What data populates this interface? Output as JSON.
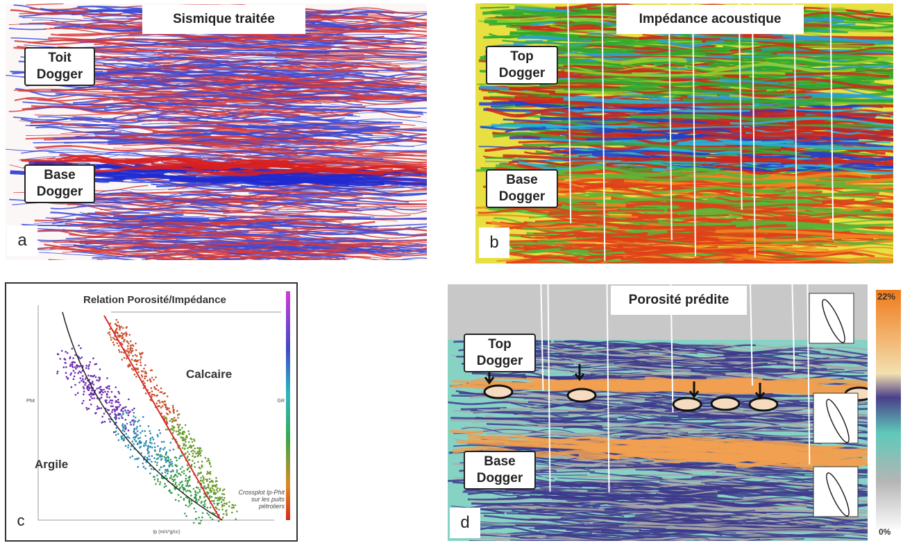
{
  "panels": [
    {
      "letter": "a",
      "title": "Sismique traitée",
      "top_label": "Toit Dogger",
      "base_label": "Base Dogger"
    },
    {
      "letter": "b",
      "title": "Impédance acoustique",
      "top_label": "Top Dogger",
      "base_label": "Base Dogger"
    },
    {
      "letter": "c",
      "title": "Relation Porosité/Impédance",
      "class_1": "Calcaire",
      "class_2": "Argile",
      "note": "Crossplot Ip-Phit sur les puits pétroliers",
      "x_label": "Ip (m/s*g/cc)",
      "y_label": "Phit",
      "colorbar_label": "GR"
    },
    {
      "letter": "d",
      "title": "Porosité prédite",
      "top_label": "Top Dogger",
      "base_label": "Base Dogger",
      "scale_max": "22%",
      "scale_min": "0%"
    }
  ]
}
